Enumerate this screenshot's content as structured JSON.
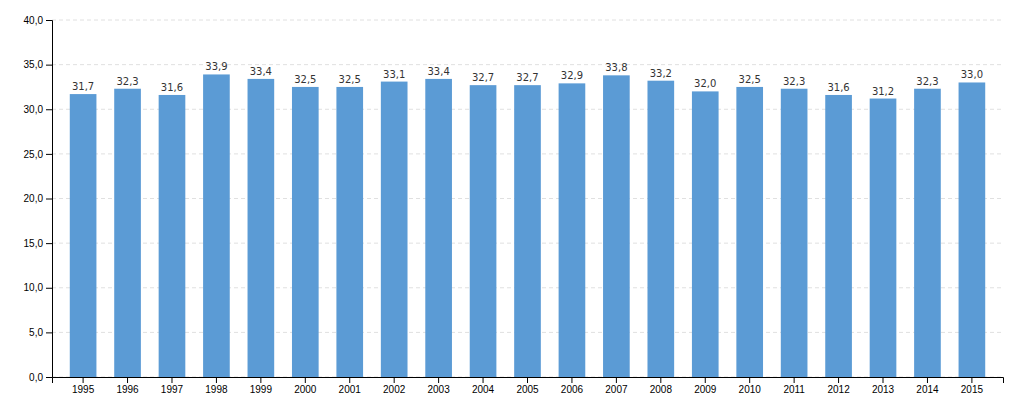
{
  "chart_data": {
    "type": "bar",
    "categories": [
      "1995",
      "1996",
      "1997",
      "1998",
      "1999",
      "2000",
      "2001",
      "2002",
      "2003",
      "2004",
      "2005",
      "2006",
      "2007",
      "2008",
      "2009",
      "2010",
      "2011",
      "2012",
      "2013",
      "2014",
      "2015"
    ],
    "values": [
      31.7,
      32.3,
      31.6,
      33.9,
      33.4,
      32.5,
      32.5,
      33.1,
      33.4,
      32.7,
      32.7,
      32.9,
      33.8,
      33.2,
      32.0,
      32.5,
      32.3,
      31.6,
      31.2,
      32.3,
      33.0
    ],
    "value_labels": [
      "31,7",
      "32,3",
      "31,6",
      "33,9",
      "33,4",
      "32,5",
      "32,5",
      "33,1",
      "33,4",
      "32,7",
      "32,7",
      "32,9",
      "33,8",
      "33,2",
      "32,0",
      "32,5",
      "32,3",
      "31,6",
      "31,2",
      "32,3",
      "33,0"
    ],
    "color": "#5b9bd5",
    "ylim": [
      0,
      40
    ],
    "yticks": [
      {
        "value": 0,
        "label": "0,0"
      },
      {
        "value": 5,
        "label": "5,0"
      },
      {
        "value": 10,
        "label": "10,0"
      },
      {
        "value": 15,
        "label": "15,0"
      },
      {
        "value": 20,
        "label": "20,0"
      },
      {
        "value": 25,
        "label": "25,0"
      },
      {
        "value": 30,
        "label": "30,0"
      },
      {
        "value": 35,
        "label": "35,0"
      },
      {
        "value": 40,
        "label": "40,0"
      }
    ],
    "grid": true,
    "data_labels": true
  }
}
